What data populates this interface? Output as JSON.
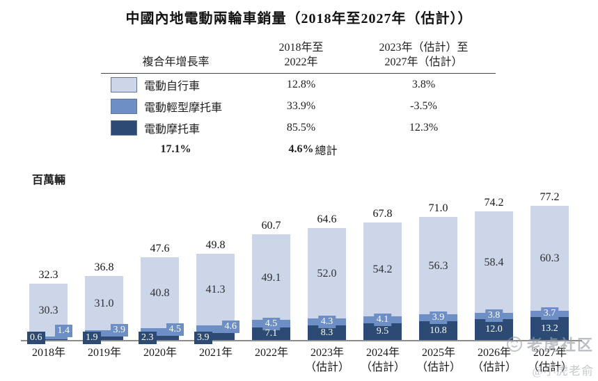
{
  "title": "中國內地電動兩輪車銷量（2018年至2027年（估計））",
  "unit_label": "百萬輛",
  "table": {
    "metric_header": "複合年增長率",
    "col1_header_line1": "2018年至",
    "col1_header_line2": "2022年",
    "col2_header_line1": "2023年（估計）至",
    "col2_header_line2": "2027年（估計）",
    "rows": [
      {
        "label": "電動自行車",
        "swatch": "#ccd6e8",
        "v1": "12.8%",
        "v2": "3.8%"
      },
      {
        "label": "電動輕型摩托車",
        "swatch": "#6e8fc5",
        "v1": "33.9%",
        "v2": "-3.5%"
      },
      {
        "label": "電動摩托車",
        "swatch": "#2c4a73",
        "v1": "85.5%",
        "v2": "12.3%"
      }
    ],
    "total_label": "總計",
    "total_v1": "17.1%",
    "total_v2": "4.6%"
  },
  "chart_data": {
    "type": "bar",
    "stacked": true,
    "title": "中國內地電動兩輪車銷量（2018年至2027年（估計））",
    "ylabel": "百萬輛",
    "ylim": [
      0,
      80
    ],
    "grid": false,
    "legend_position": "table-top-left",
    "categories": [
      {
        "label": "2018年",
        "sublabel": ""
      },
      {
        "label": "2019年",
        "sublabel": ""
      },
      {
        "label": "2020年",
        "sublabel": ""
      },
      {
        "label": "2021年",
        "sublabel": ""
      },
      {
        "label": "2022年",
        "sublabel": ""
      },
      {
        "label": "2023年",
        "sublabel": "（估計）"
      },
      {
        "label": "2024年",
        "sublabel": "（估計）"
      },
      {
        "label": "2025年",
        "sublabel": "（估計）"
      },
      {
        "label": "2026年",
        "sublabel": "（估計）"
      },
      {
        "label": "2027年",
        "sublabel": "（估計）"
      }
    ],
    "series": [
      {
        "name": "電動摩托車",
        "color": "#2c4a73",
        "values": [
          0.6,
          1.9,
          2.3,
          3.9,
          7.1,
          8.3,
          9.5,
          10.8,
          12.0,
          13.2
        ]
      },
      {
        "name": "電動輕型摩托車",
        "color": "#6e8fc5",
        "values": [
          1.4,
          3.9,
          4.5,
          4.6,
          4.5,
          4.3,
          4.1,
          3.9,
          3.8,
          3.7
        ]
      },
      {
        "name": "電動自行車",
        "color": "#ccd6e8",
        "values": [
          30.3,
          31.0,
          40.8,
          41.3,
          49.1,
          52.0,
          54.2,
          56.3,
          58.4,
          60.3
        ]
      }
    ],
    "totals": [
      32.3,
      36.8,
      47.6,
      49.8,
      60.7,
      64.6,
      67.8,
      71.0,
      74.2,
      77.2
    ]
  },
  "colors": {
    "ebike_light": "#ccd6e8",
    "light_moto_medium": "#6e8fc5",
    "moto_dark": "#2c4a73",
    "axis": "#8c8c8c"
  },
  "watermark": {
    "line1": "老虎社区",
    "line2": "@小虎老俞"
  }
}
